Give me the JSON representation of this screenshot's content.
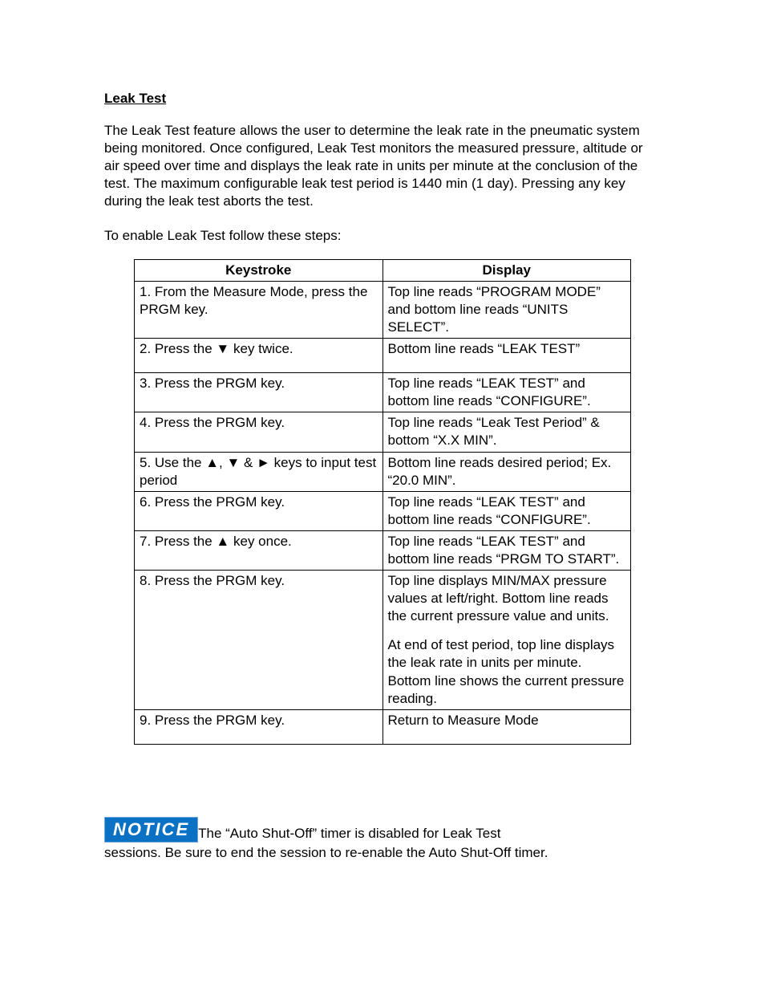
{
  "heading": "Leak Test",
  "intro": "The Leak Test feature allows the user to determine the leak rate in the pneumatic system being monitored. Once configured, Leak Test monitors the measured pressure, altitude or air speed over time and displays the leak rate in units per minute at the conclusion of the test. The maximum configurable leak test period is 1440 min (1 day). Pressing any key during the leak test aborts the test.",
  "enable_line": "To enable Leak Test follow these steps:",
  "table": {
    "columns": [
      "Keystroke",
      "Display"
    ],
    "rows": [
      {
        "keystroke": "1. From the Measure Mode, press the PRGM key.",
        "display": "Top line reads “PROGRAM MODE” and bottom line reads “UNITS SELECT”."
      },
      {
        "keystroke": "2. Press the ▼ key twice.",
        "display": "Bottom line reads “LEAK TEST”"
      },
      {
        "keystroke": "3. Press the PRGM key.",
        "display": "Top line reads “LEAK TEST” and bottom line reads “CONFIGURE”."
      },
      {
        "keystroke": "4. Press the PRGM key.",
        "display": "Top line reads “Leak Test Period” & bottom “X.X MIN”."
      },
      {
        "keystroke": "5. Use the ▲, ▼ & ► keys to input test period",
        "display": "Bottom line reads desired period; Ex. “20.0 MIN”."
      },
      {
        "keystroke": "6. Press the PRGM key.",
        "display": "Top line reads “LEAK TEST” and bottom line reads “CONFIGURE”."
      },
      {
        "keystroke": "7. Press the ▲ key once.",
        "display": "Top line reads “LEAK TEST” and bottom line reads “PRGM TO START”."
      },
      {
        "keystroke": "8. Press the PRGM key.",
        "display_a": "Top line displays MIN/MAX pressure values at left/right. Bottom line reads the current pressure value and units.",
        "display_b": "At end of test period, top line displays the leak rate in units per minute. Bottom line shows the current pressure reading."
      },
      {
        "keystroke": "9. Press the PRGM key.",
        "display": "Return to Measure Mode"
      }
    ]
  },
  "notice": {
    "badge": "NOTICE",
    "text_line1": "The “Auto Shut-Off” timer is disabled for Leak Test",
    "text_line2": "sessions. Be sure to end the session to re-enable the Auto Shut-Off timer.",
    "badge_bg": "#0a71c5",
    "badge_fg": "#ffffff"
  }
}
